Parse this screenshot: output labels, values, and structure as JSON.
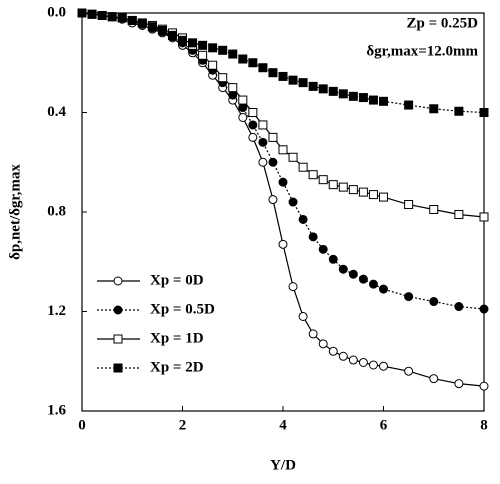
{
  "chart_data": {
    "type": "line",
    "x_label": "Y/D",
    "y_label": "δp,net/δgr,max",
    "annotations": [
      "Zp = 0.25D",
      "δgr,max=12.0mm"
    ],
    "x": [
      0,
      0.2,
      0.4,
      0.6,
      0.8,
      1,
      1.2,
      1.4,
      1.6,
      1.8,
      2,
      2.2,
      2.4,
      2.6,
      2.8,
      3,
      3.2,
      3.4,
      3.6,
      3.8,
      4,
      4.2,
      4.4,
      4.6,
      4.8,
      5,
      5.2,
      5.4,
      5.6,
      5.8,
      6,
      6.5,
      7,
      7.5,
      8
    ],
    "series": [
      {
        "name": "Xp = 0D",
        "color": "#000000",
        "marker": "circle",
        "filled": false,
        "dash": "solid",
        "values": [
          0,
          0.005,
          0.01,
          0.015,
          0.025,
          0.04,
          0.05,
          0.065,
          0.08,
          0.1,
          0.13,
          0.16,
          0.2,
          0.25,
          0.3,
          0.35,
          0.42,
          0.5,
          0.6,
          0.75,
          0.93,
          1.1,
          1.22,
          1.29,
          1.33,
          1.36,
          1.38,
          1.395,
          1.405,
          1.415,
          1.42,
          1.44,
          1.47,
          1.49,
          1.5
        ]
      },
      {
        "name": "Xp = 0.5D",
        "color": "#000000",
        "marker": "circle",
        "filled": true,
        "dash": "dotted",
        "values": [
          0,
          0.005,
          0.01,
          0.015,
          0.02,
          0.03,
          0.045,
          0.06,
          0.075,
          0.095,
          0.12,
          0.15,
          0.19,
          0.23,
          0.28,
          0.33,
          0.38,
          0.45,
          0.52,
          0.6,
          0.68,
          0.76,
          0.83,
          0.9,
          0.95,
          0.99,
          1.03,
          1.05,
          1.07,
          1.09,
          1.11,
          1.14,
          1.16,
          1.18,
          1.19
        ]
      },
      {
        "name": "Xp = 1D",
        "color": "#000000",
        "marker": "square",
        "filled": false,
        "dash": "solid",
        "values": [
          0,
          0.005,
          0.01,
          0.015,
          0.02,
          0.03,
          0.04,
          0.05,
          0.065,
          0.08,
          0.1,
          0.13,
          0.17,
          0.21,
          0.26,
          0.3,
          0.35,
          0.4,
          0.45,
          0.5,
          0.55,
          0.58,
          0.62,
          0.65,
          0.67,
          0.69,
          0.7,
          0.71,
          0.72,
          0.73,
          0.74,
          0.77,
          0.79,
          0.81,
          0.82
        ]
      },
      {
        "name": "Xp = 2D",
        "color": "#000000",
        "marker": "square",
        "filled": true,
        "dash": "dotted",
        "values": [
          0,
          0.005,
          0.01,
          0.015,
          0.02,
          0.03,
          0.04,
          0.055,
          0.07,
          0.09,
          0.11,
          0.12,
          0.13,
          0.14,
          0.15,
          0.165,
          0.185,
          0.2,
          0.22,
          0.24,
          0.255,
          0.27,
          0.28,
          0.295,
          0.305,
          0.315,
          0.325,
          0.335,
          0.34,
          0.35,
          0.355,
          0.37,
          0.385,
          0.395,
          0.4
        ]
      }
    ],
    "xlim": [
      0,
      8
    ],
    "xticks": [
      0,
      2,
      4,
      6,
      8
    ],
    "ylim": [
      0,
      1.6
    ],
    "y_inverted": true,
    "yticks": [
      {
        "value": 0,
        "label": "0.0"
      },
      0.4,
      0.8,
      1.2,
      1.6
    ],
    "grid": false,
    "legend": "lower left"
  }
}
